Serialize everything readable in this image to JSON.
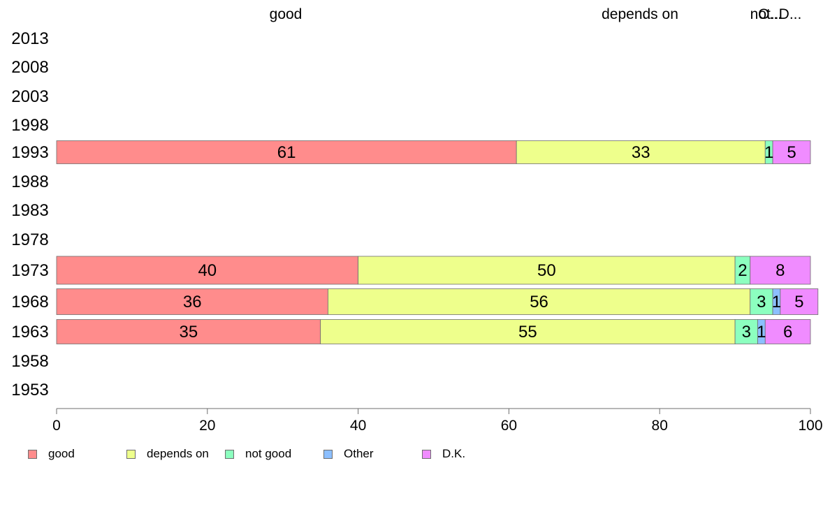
{
  "chart_data": {
    "type": "bar",
    "orientation": "horizontal",
    "stacked": true,
    "categories": [
      "2013",
      "2008",
      "2003",
      "1998",
      "1993",
      "1988",
      "1983",
      "1978",
      "1973",
      "1968",
      "1963",
      "1958",
      "1953"
    ],
    "series": [
      {
        "name": "good",
        "color": "#ff8c8c",
        "values": [
          null,
          null,
          null,
          null,
          61,
          null,
          null,
          null,
          40,
          36,
          35,
          null,
          null
        ]
      },
      {
        "name": "depends on",
        "color": "#eeff8c",
        "values": [
          null,
          null,
          null,
          null,
          33,
          null,
          null,
          null,
          50,
          56,
          55,
          null,
          null
        ]
      },
      {
        "name": "not good",
        "color": "#8cffbf",
        "values": [
          null,
          null,
          null,
          null,
          1,
          null,
          null,
          null,
          2,
          3,
          3,
          null,
          null
        ]
      },
      {
        "name": "Other",
        "color": "#8cbfff",
        "values": [
          null,
          null,
          null,
          null,
          0,
          null,
          null,
          null,
          0,
          1,
          1,
          null,
          null
        ]
      },
      {
        "name": "D.K.",
        "color": "#f08cff",
        "values": [
          null,
          null,
          null,
          null,
          5,
          null,
          null,
          null,
          8,
          5,
          6,
          null,
          null
        ]
      }
    ],
    "data_labels": [
      {
        "year": "1993",
        "labels": [
          "61",
          "33",
          "1",
          "",
          "5"
        ]
      },
      {
        "year": "1973",
        "labels": [
          "40",
          "50",
          "2",
          "",
          "8"
        ]
      },
      {
        "year": "1968",
        "labels": [
          "36",
          "56",
          "3",
          "1",
          "5"
        ]
      },
      {
        "year": "1963",
        "labels": [
          "35",
          "55",
          "3",
          "1",
          "6"
        ]
      }
    ],
    "top_labels": [
      "good",
      "depends on",
      "not...",
      "O...",
      "D..."
    ],
    "x_ticks": [
      "0",
      "20",
      "40",
      "60",
      "80",
      "100"
    ],
    "xlim": [
      0,
      100
    ],
    "grid": false,
    "legend_position": "bottom-left"
  },
  "legend": [
    {
      "label": "good",
      "color": "#ff8c8c"
    },
    {
      "label": "depends on",
      "color": "#eeff8c"
    },
    {
      "label": "not good",
      "color": "#8cffbf"
    },
    {
      "label": "Other",
      "color": "#8cbfff"
    },
    {
      "label": "D.K.",
      "color": "#f08cff"
    }
  ]
}
